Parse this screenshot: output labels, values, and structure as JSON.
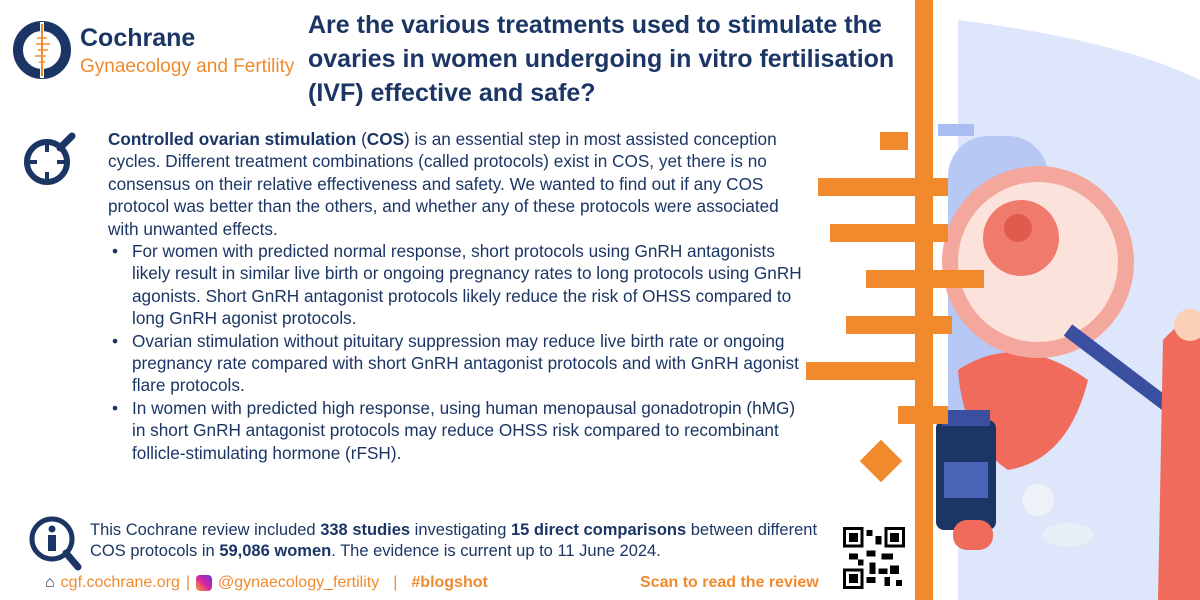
{
  "brand": {
    "name": "Cochrane",
    "group": "Gynaecology and Fertility"
  },
  "title": "Are the various treatments used to stimulate the ovaries in women undergoing in vitro fertilisation (IVF) effective and safe?",
  "intro": {
    "bold1": "Controlled ovarian stimulation",
    "p1": " (",
    "bold2": "COS",
    "p2": ") is an essential step in most assisted conception cycles. Different treatment combinations (called protocols) exist in COS, yet there is no consensus on their relative effectiveness and safety. We wanted to find out if any COS protocol was better than the others, and whether any of these protocols were associated with unwanted effects."
  },
  "bullets": [
    "For women with predicted normal response, short protocols using GnRH antagonists likely result in similar live birth or ongoing pregnancy rates to long protocols using GnRH agonists. Short GnRH antagonist protocols likely reduce the risk of OHSS compared to long GnRH agonist protocols.",
    "Ovarian stimulation without pituitary suppression may reduce live birth rate or ongoing pregnancy rate compared with short GnRH antagonist protocols and with GnRH agonist flare protocols.",
    "In women with predicted high response, using human menopausal gonadotropin (hMG) in short GnRH antagonist protocols may reduce OHSS risk compared to recombinant follicle-stimulating hormone (rFSH)."
  ],
  "summary": {
    "t1": "This Cochrane review included ",
    "b1": "338 studies",
    "t2": " investigating ",
    "b2": "15 direct comparisons",
    "t3": " between different COS protocols in ",
    "b3": "59,086 women",
    "t4": ". The evidence is current up to 11 June 2024."
  },
  "footer": {
    "website": "cgf.cochrane.org",
    "sep": "|",
    "instagram": "@gynaecology_fertility",
    "hashtag": "#blogshot",
    "scan": "Scan to read the review"
  },
  "colors": {
    "navy": "#1b3665",
    "orange": "#f08a2c"
  }
}
